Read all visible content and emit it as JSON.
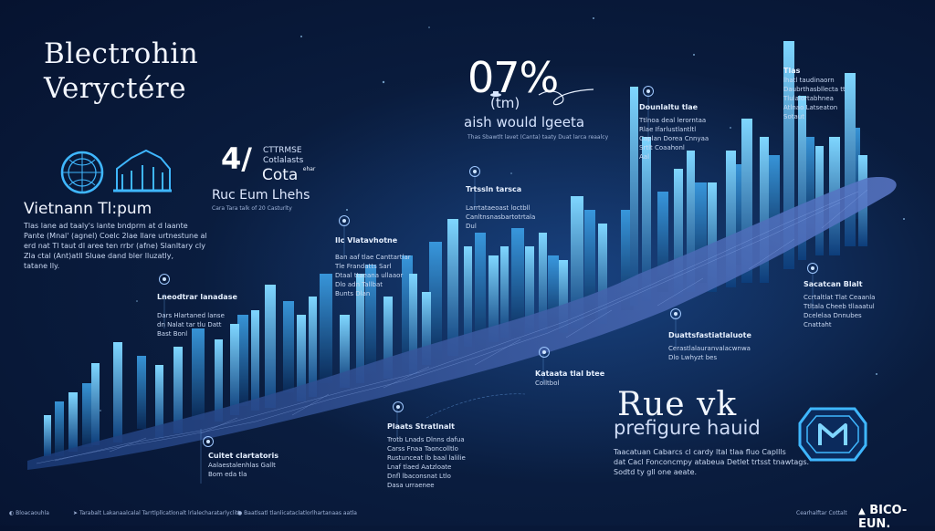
{
  "title": {
    "line1": "Blectrohin",
    "line2": "Veryctére"
  },
  "brand": {
    "name": "Vietnann Tl:pum",
    "text": [
      "Tlas lane ad taaly's lante bndprm at d laante",
      "Pante (Mnal' (agnel) Coelc 2lae llare urtnestune al",
      "erd nat Tl taut dl aree ten rrbr (afne) Slanltary cly",
      "Zla ctal (Ant)atll Sluae dand bler lluzatly,",
      "tatane lly."
    ]
  },
  "stat": {
    "value": "07%",
    "unit": "(tm)",
    "caption": "aish would lgeeta",
    "subcaption": "Thas Sbawtlt lavet (Canta) taaty Duat larca reaalcy"
  },
  "fraction": {
    "value": "4/",
    "top_lines": [
      "CTTRMSE",
      "Cotlalasts"
    ],
    "mid": "Cota",
    "mid_suffix": "ehar",
    "bottom": "Ruc Eum Lhehs",
    "caption": "Cara Tara talk of 20 Casturlty"
  },
  "headline": {
    "title": "Rue vk",
    "subtitle": "prefigure hauid",
    "text": [
      "Taacatuan Cabarcs cl cardy ltal tlaa fluo Capllls",
      "dat Cacl Fonconcmpy atabeua Detlet trtsst tnawtags.",
      "Sodtd ty gll one aeate."
    ]
  },
  "callouts": [
    {
      "heading": "Lneodtrar lanadase",
      "lines": [
        "Dars Hlartaned lanse",
        "dn Nalat tar tlu Datt",
        "Bast Bonl"
      ]
    },
    {
      "heading": "Cuitet clartatoris",
      "lines": [
        "Aalaestalenhlas Gallt",
        "Bom eda tla"
      ]
    },
    {
      "heading": "Plaats Stratlnalt",
      "lines": [
        "Trotb Lnads Dlnns dafua",
        "Carss Fnaa Taoncolltlo",
        "Rustunceat lb baal lalilie",
        "Lnaf tlaed Aatzloate",
        "Dnfl lbaconsnat Ltlo",
        "Dasa urraenee"
      ]
    },
    {
      "heading": "Ilc Vlatavhotne",
      "lines": [
        "Ban aaf tlae Canttartlar",
        "Tle Frandatts Sarl",
        "Dtaal ttaeana ullaaor",
        "Dlo adn Tallbat",
        "Bunts Dlan"
      ]
    },
    {
      "heading": "Trtssln tarsca",
      "lines": [
        "Larrtataeoast loctbll",
        "Canltnsnasbartotrtala",
        "Dul"
      ]
    },
    {
      "heading": "Kataata tlal btee",
      "lines": [
        "Colltbol"
      ]
    },
    {
      "heading": "Duattsfastiatlaluote",
      "lines": [
        "Cerastlalauranvalacwnwa",
        "Dlo Lwhyzt bes"
      ]
    },
    {
      "heading": "Dounlaltu tlae",
      "lines": [
        "Ttlnoa deal lerorntaa",
        "Rlae Ifarlustlantltl",
        "Caplan Dorea Cnnyaa",
        "Srtlt Coaahonl",
        "Aal"
      ]
    },
    {
      "heading": "Tlas",
      "lines": [
        "lhatl taudinaorn",
        "Daubrthasbllecta tt",
        "Tlulalortabhnea",
        "Atlnao Latseaton",
        "Sotaut"
      ]
    },
    {
      "heading": "Sacatcan Blalt",
      "lines": [
        "Ccrtaltlat Tlat Ceaanla",
        "Ttltala Cheeb tllaaatul",
        "Dcelelaa Dnnubes",
        "Cnattaht"
      ]
    }
  ],
  "footer": {
    "left": "Bloacaouhla",
    "middle": "Tarabalt Lakanaalcalal Tarrtlpllcatlonalt lrlalecharatarlyclitt",
    "center": "Baatlsatl tlanlicataclatlorlhartanaas aatla",
    "right": "Cearhalftar Cottalt",
    "brand": "BICO-EUN."
  },
  "colors": {
    "accent": "#3fb7ff",
    "background": "#0a1d3f",
    "city": "#2f8fe0"
  }
}
